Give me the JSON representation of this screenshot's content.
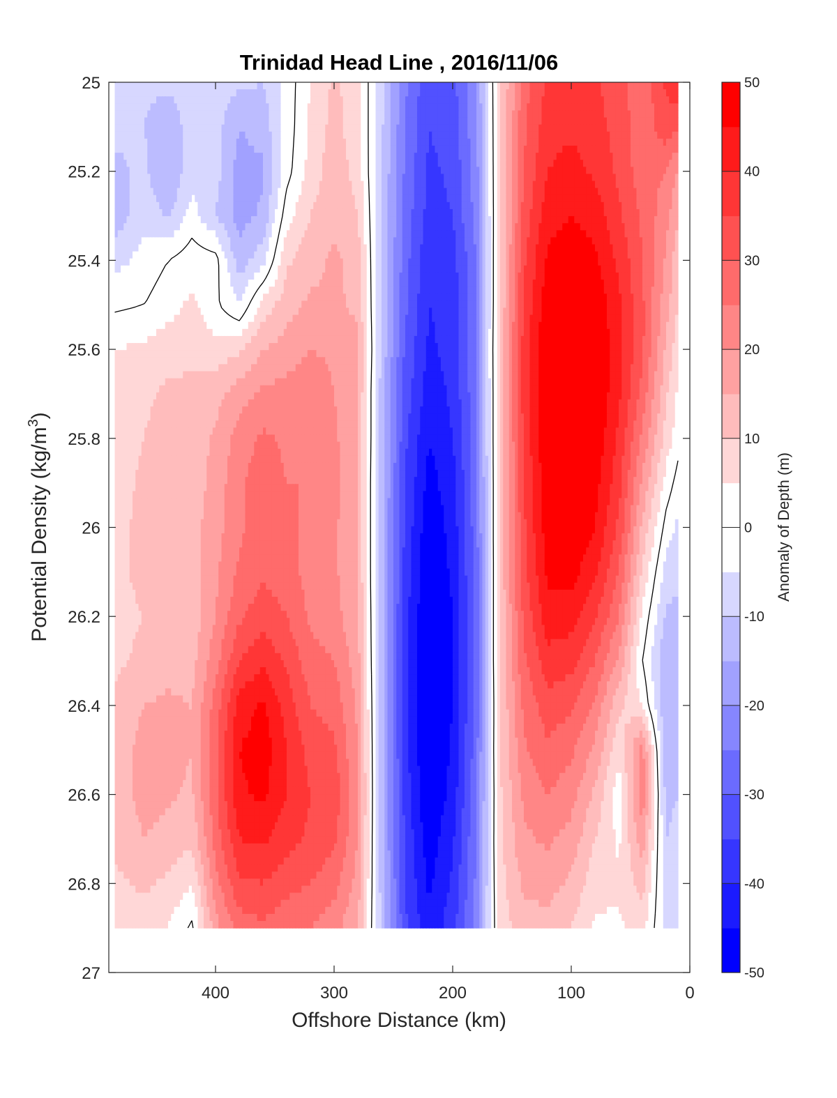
{
  "chart_data": {
    "type": "heatmap",
    "title": "Trinidad Head Line , 2016/11/06",
    "xlabel": "Offshore Distance (km)",
    "ylabel": "Potential Density (kg/m",
    "ylabel_superscript": "3",
    "ylabel_suffix": ")",
    "colorbar_label": "Anomaly of Depth (m)",
    "xlim": [
      490,
      0
    ],
    "ylim": [
      25,
      27
    ],
    "y_reversed": true,
    "x_reversed": true,
    "xticks": [
      400,
      300,
      200,
      100,
      0
    ],
    "yticks": [
      25,
      25.2,
      25.4,
      25.6,
      25.8,
      26,
      26.2,
      26.4,
      26.6,
      26.8,
      27
    ],
    "ytick_labels": [
      "25",
      "25.2",
      "25.4",
      "25.6",
      "25.8",
      "26",
      "26.2",
      "26.4",
      "26.6",
      "26.8",
      "27"
    ],
    "colorbar_ticks": [
      -50,
      -40,
      -30,
      -20,
      -10,
      0,
      10,
      20,
      30,
      40,
      50
    ],
    "color_levels_step": 5,
    "colormap": {
      "min_color": "#0000ff",
      "zero_color": "#ffffff",
      "max_color": "#ff0000"
    },
    "contour_line": {
      "level": 0,
      "color": "#000000"
    },
    "data_extent": {
      "x": [
        485,
        10
      ],
      "y": [
        25,
        26.9
      ]
    },
    "x": [
      485,
      460,
      440,
      420,
      400,
      380,
      360,
      340,
      320,
      300,
      280,
      260,
      240,
      220,
      200,
      180,
      160,
      140,
      120,
      100,
      80,
      60,
      40,
      20,
      10
    ],
    "y": [
      25.0,
      25.1,
      25.2,
      25.3,
      25.4,
      25.5,
      25.6,
      25.7,
      25.8,
      25.9,
      26.0,
      26.1,
      26.2,
      26.3,
      26.4,
      26.5,
      26.6,
      26.7,
      26.8,
      26.9
    ],
    "z": [
      [
        -8,
        -9,
        -9,
        -8,
        -7,
        -9,
        -10,
        -3,
        5,
        11,
        7,
        -9,
        -24,
        -34,
        -32,
        -20,
        9,
        28,
        36,
        38,
        36,
        32,
        26,
        36,
        40
      ],
      [
        -9,
        -10,
        -13,
        -8,
        -8,
        -15,
        -13,
        -3,
        6,
        12,
        7,
        -9,
        -25,
        -35,
        -33,
        -21,
        9,
        29,
        38,
        39,
        37,
        33,
        27,
        33,
        30
      ],
      [
        -11,
        -9,
        -15,
        -7,
        -8,
        -17,
        -16,
        -2,
        7,
        13,
        8,
        -10,
        -26,
        -36,
        -34,
        -22,
        9,
        30,
        40,
        42,
        39,
        34,
        27,
        25,
        20
      ],
      [
        -13,
        -7,
        -11,
        -3,
        -10,
        -17,
        -14,
        3,
        10,
        14,
        10,
        -10,
        -27,
        -37,
        -35,
        -23,
        9,
        32,
        43,
        45,
        43,
        36,
        29,
        22,
        15
      ],
      [
        -7,
        -3,
        0,
        3,
        2,
        -13,
        -7,
        9,
        13,
        16,
        13,
        -11,
        -28,
        -39,
        -37,
        -25,
        10,
        34,
        46,
        48,
        46,
        39,
        30,
        19,
        12
      ],
      [
        -1,
        0,
        3,
        6,
        1,
        -5,
        7,
        13,
        16,
        16,
        14,
        -11,
        -29,
        -40,
        -38,
        -25,
        10,
        36,
        48,
        50,
        49,
        41,
        31,
        17,
        10
      ],
      [
        5,
        6,
        8,
        9,
        7,
        9,
        15,
        17,
        20,
        19,
        16,
        -11,
        -31,
        -41,
        -38,
        -25,
        11,
        37,
        50,
        51,
        50,
        42,
        31,
        14,
        7
      ],
      [
        7,
        9,
        11,
        11,
        13,
        18,
        21,
        22,
        24,
        20,
        15,
        -12,
        -32,
        -43,
        -39,
        -26,
        11,
        37,
        50,
        52,
        50,
        41,
        28,
        11,
        4
      ],
      [
        8,
        10,
        13,
        12,
        16,
        22,
        26,
        24,
        25,
        21,
        15,
        -12,
        -34,
        -45,
        -40,
        -26,
        11,
        36,
        50,
        52,
        49,
        39,
        24,
        8,
        2
      ],
      [
        8,
        11,
        14,
        12,
        17,
        24,
        28,
        25,
        25,
        22,
        15,
        -13,
        -35,
        -47,
        -42,
        -27,
        11,
        35,
        49,
        51,
        47,
        37,
        19,
        3,
        -2
      ],
      [
        9,
        11,
        14,
        13,
        18,
        24,
        28,
        26,
        24,
        21,
        15,
        -13,
        -36,
        -49,
        -43,
        -27,
        11,
        34,
        48,
        50,
        45,
        34,
        14,
        -2,
        -6
      ],
      [
        9,
        11,
        13,
        13,
        19,
        26,
        29,
        27,
        23,
        21,
        15,
        -13,
        -37,
        -50,
        -44,
        -28,
        11,
        33,
        46,
        47,
        41,
        30,
        9,
        -7,
        -9
      ],
      [
        9,
        10,
        12,
        12,
        20,
        29,
        33,
        30,
        24,
        22,
        16,
        -13,
        -38,
        -51,
        -45,
        -28,
        11,
        31,
        43,
        42,
        36,
        25,
        4,
        -11,
        -11
      ],
      [
        9,
        11,
        13,
        13,
        23,
        35,
        39,
        34,
        27,
        25,
        17,
        -13,
        -38,
        -52,
        -45,
        -28,
        11,
        29,
        38,
        37,
        30,
        19,
        0,
        -14,
        -11
      ],
      [
        11,
        15,
        16,
        15,
        27,
        42,
        46,
        38,
        30,
        28,
        19,
        -13,
        -38,
        -52,
        -45,
        -28,
        10,
        26,
        33,
        31,
        24,
        11,
        5,
        -15,
        -11
      ],
      [
        12,
        17,
        17,
        15,
        29,
        45,
        48,
        40,
        33,
        31,
        20,
        -13,
        -38,
        -51,
        -44,
        -27,
        10,
        24,
        29,
        26,
        19,
        6,
        22,
        -14,
        -11
      ],
      [
        12,
        17,
        16,
        14,
        29,
        44,
        46,
        40,
        35,
        33,
        21,
        -13,
        -37,
        -50,
        -43,
        -26,
        9,
        21,
        25,
        22,
        14,
        2,
        24,
        -12,
        -10
      ],
      [
        11,
        15,
        13,
        11,
        27,
        40,
        41,
        37,
        34,
        31,
        20,
        -13,
        -36,
        -48,
        -41,
        -25,
        9,
        19,
        21,
        18,
        10,
        4,
        18,
        -10,
        -8
      ],
      [
        9,
        11,
        9,
        5,
        23,
        34,
        35,
        32,
        30,
        27,
        18,
        -12,
        -35,
        -46,
        -39,
        -24,
        8,
        16,
        17,
        14,
        7,
        6,
        12,
        -8,
        -7
      ],
      [
        6,
        7,
        5,
        -1,
        18,
        27,
        29,
        26,
        25,
        22,
        15,
        -11,
        -34,
        -44,
        -37,
        -23,
        7,
        13,
        13,
        10,
        4,
        4,
        7,
        -7,
        -6
      ]
    ]
  }
}
